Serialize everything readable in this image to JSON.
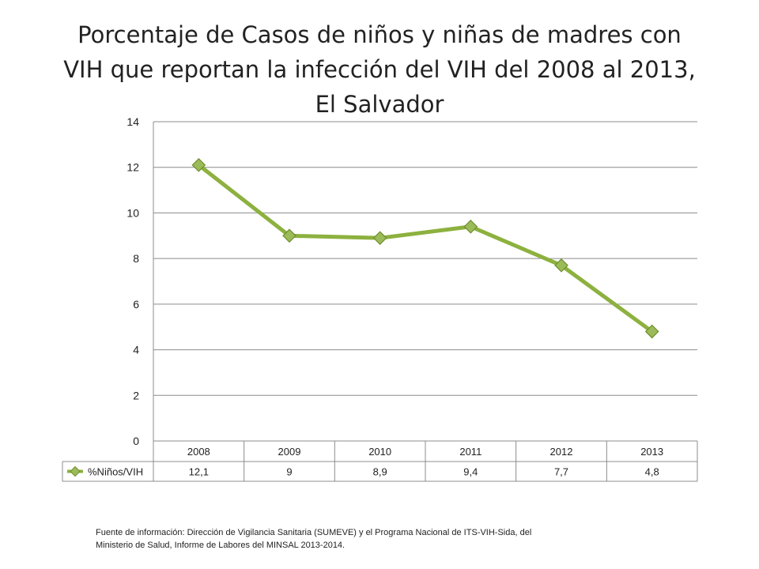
{
  "title_lines": [
    "Porcentaje de Casos de niños y niñas de madres con",
    "VIH que reportan la infección del VIH del 2008 al  2013,",
    "El Salvador"
  ],
  "source_lines": [
    "Fuente de información: Dirección de Vigilancia Sanitaria  (SUMEVE) y el Programa Nacional de ITS-VIH-Sida, del",
    "Ministerio de Salud, Informe de Labores del MINSAL 2013-2014."
  ],
  "colors": {
    "series_line": "#8db13f",
    "marker_fill": "#9bbb59",
    "marker_stroke": "#6f8f2f",
    "grid": "#8c8c8c",
    "table_border": "#8c8c8c"
  },
  "chart_data": {
    "type": "line",
    "title": "Porcentaje de Casos de niños y niñas de madres con VIH que reportan la infección del VIH del 2008 al  2013, El Salvador",
    "categories": [
      "2008",
      "2009",
      "2010",
      "2011",
      "2012",
      "2013"
    ],
    "series": [
      {
        "name": "%Niños/VIH",
        "values": [
          12.1,
          9,
          8.9,
          9.4,
          7.7,
          4.8
        ],
        "value_labels": [
          "12,1",
          "9",
          "8,9",
          "9,4",
          "7,7",
          "4,8"
        ]
      }
    ],
    "ylim": [
      0,
      14
    ],
    "yticks": [
      0,
      2,
      4,
      6,
      8,
      10,
      12,
      14
    ],
    "grid": true,
    "legend": "data-table"
  }
}
